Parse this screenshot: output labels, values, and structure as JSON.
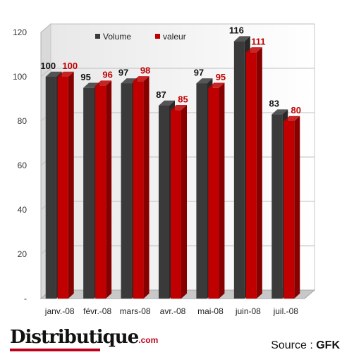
{
  "chart_data": {
    "type": "bar",
    "categories": [
      "janv.-08",
      "févr.-08",
      "mars-08",
      "avr.-08",
      "mai-08",
      "juin-08",
      "juil.-08"
    ],
    "series": [
      {
        "name": "Volume",
        "values": [
          100,
          95,
          97,
          87,
          97,
          116,
          83
        ],
        "color": "#3a3a3a",
        "label_color": "#111111"
      },
      {
        "name": "valeur",
        "values": [
          100,
          96,
          98,
          85,
          95,
          111,
          80
        ],
        "color": "#c00000",
        "label_color": "#c00000"
      }
    ],
    "yticks": [
      "-",
      "20",
      "40",
      "60",
      "80",
      "100",
      "120"
    ],
    "ylim": [
      0,
      120
    ],
    "grid": true,
    "legend_position": "top"
  },
  "footer": {
    "logo_text": "Distributique",
    "logo_suffix": ".com",
    "source_label": "Source : ",
    "source_value": "GFK"
  }
}
